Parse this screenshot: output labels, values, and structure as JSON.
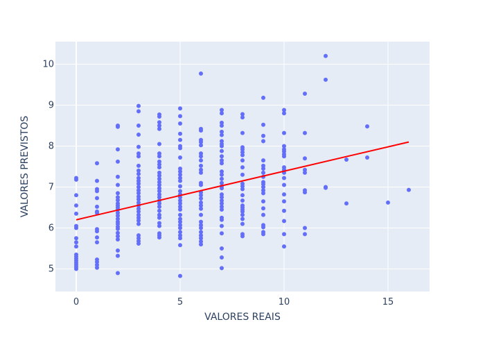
{
  "chart_data": {
    "type": "scatter",
    "xlabel": "VALORES REAIS",
    "ylabel": "VALORES PREVISTOS",
    "xlim": [
      -1,
      17
    ],
    "ylim": [
      4.45,
      10.55
    ],
    "x_ticks": [
      0,
      5,
      10,
      15
    ],
    "y_ticks": [
      5,
      6,
      7,
      8,
      9,
      10
    ],
    "grid": true,
    "colors": {
      "background": "#e5ecf6",
      "grid": "#ffffff",
      "points": "#636efa",
      "trend": "#ff0000",
      "text": "#2a3f5f"
    },
    "series": [
      {
        "points": [
          [
            0,
            5.0
          ],
          [
            0,
            5.05
          ],
          [
            0,
            5.1
          ],
          [
            0,
            5.15
          ],
          [
            0,
            5.2
          ],
          [
            0,
            5.25
          ],
          [
            0,
            5.3
          ],
          [
            0,
            5.35
          ],
          [
            0,
            5.55
          ],
          [
            0,
            5.65
          ],
          [
            0,
            5.75
          ],
          [
            0,
            6.0
          ],
          [
            0,
            6.05
          ],
          [
            0,
            6.35
          ],
          [
            0,
            6.55
          ],
          [
            0,
            6.8
          ],
          [
            0,
            7.18
          ],
          [
            0,
            7.22
          ],
          [
            1,
            5.03
          ],
          [
            1,
            5.1
          ],
          [
            1,
            5.17
          ],
          [
            1,
            5.23
          ],
          [
            1,
            5.65
          ],
          [
            1,
            5.77
          ],
          [
            1,
            5.92
          ],
          [
            1,
            5.97
          ],
          [
            1,
            6.37
          ],
          [
            1,
            6.4
          ],
          [
            1,
            6.52
          ],
          [
            1,
            6.73
          ],
          [
            1,
            6.9
          ],
          [
            1,
            6.95
          ],
          [
            1,
            7.15
          ],
          [
            1,
            7.58
          ],
          [
            2,
            4.9
          ],
          [
            2,
            5.32
          ],
          [
            2,
            5.45
          ],
          [
            2,
            5.72
          ],
          [
            2,
            5.8
          ],
          [
            2,
            5.88
          ],
          [
            2,
            5.98
          ],
          [
            2,
            6.03
          ],
          [
            2,
            6.1
          ],
          [
            2,
            6.15
          ],
          [
            2,
            6.22
          ],
          [
            2,
            6.3
          ],
          [
            2,
            6.37
          ],
          [
            2,
            6.45
          ],
          [
            2,
            6.5
          ],
          [
            2,
            6.55
          ],
          [
            2,
            6.6
          ],
          [
            2,
            6.68
          ],
          [
            2,
            6.75
          ],
          [
            2,
            6.85
          ],
          [
            2,
            7.05
          ],
          [
            2,
            7.25
          ],
          [
            2,
            7.62
          ],
          [
            2,
            7.92
          ],
          [
            2,
            8.47
          ],
          [
            2,
            8.5
          ],
          [
            3,
            5.62
          ],
          [
            3,
            5.68
          ],
          [
            3,
            5.75
          ],
          [
            3,
            5.82
          ],
          [
            3,
            6.1
          ],
          [
            3,
            6.18
          ],
          [
            3,
            6.25
          ],
          [
            3,
            6.32
          ],
          [
            3,
            6.4
          ],
          [
            3,
            6.47
          ],
          [
            3,
            6.55
          ],
          [
            3,
            6.62
          ],
          [
            3,
            6.7
          ],
          [
            3,
            6.77
          ],
          [
            3,
            6.85
          ],
          [
            3,
            6.92
          ],
          [
            3,
            7.0
          ],
          [
            3,
            7.08
          ],
          [
            3,
            7.15
          ],
          [
            3,
            7.22
          ],
          [
            3,
            7.32
          ],
          [
            3,
            7.4
          ],
          [
            3,
            7.52
          ],
          [
            3,
            7.75
          ],
          [
            3,
            7.82
          ],
          [
            3,
            7.98
          ],
          [
            3,
            8.28
          ],
          [
            3,
            8.5
          ],
          [
            3,
            8.85
          ],
          [
            3,
            8.98
          ],
          [
            4,
            5.77
          ],
          [
            4,
            5.82
          ],
          [
            4,
            5.87
          ],
          [
            4,
            6.05
          ],
          [
            4,
            6.12
          ],
          [
            4,
            6.25
          ],
          [
            4,
            6.32
          ],
          [
            4,
            6.42
          ],
          [
            4,
            6.52
          ],
          [
            4,
            6.6
          ],
          [
            4,
            6.67
          ],
          [
            4,
            6.75
          ],
          [
            4,
            6.82
          ],
          [
            4,
            6.9
          ],
          [
            4,
            6.97
          ],
          [
            4,
            7.05
          ],
          [
            4,
            7.12
          ],
          [
            4,
            7.2
          ],
          [
            4,
            7.28
          ],
          [
            4,
            7.35
          ],
          [
            4,
            7.48
          ],
          [
            4,
            7.55
          ],
          [
            4,
            7.62
          ],
          [
            4,
            7.75
          ],
          [
            4,
            7.82
          ],
          [
            4,
            8.05
          ],
          [
            4,
            8.42
          ],
          [
            4,
            8.5
          ],
          [
            4,
            8.58
          ],
          [
            4,
            8.72
          ],
          [
            4,
            8.77
          ],
          [
            5,
            4.83
          ],
          [
            5,
            5.58
          ],
          [
            5,
            5.75
          ],
          [
            5,
            5.82
          ],
          [
            5,
            5.9
          ],
          [
            5,
            6.0
          ],
          [
            5,
            6.07
          ],
          [
            5,
            6.15
          ],
          [
            5,
            6.22
          ],
          [
            5,
            6.32
          ],
          [
            5,
            6.45
          ],
          [
            5,
            6.52
          ],
          [
            5,
            6.6
          ],
          [
            5,
            6.67
          ],
          [
            5,
            6.75
          ],
          [
            5,
            6.82
          ],
          [
            5,
            6.9
          ],
          [
            5,
            7.02
          ],
          [
            5,
            7.15
          ],
          [
            5,
            7.22
          ],
          [
            5,
            7.3
          ],
          [
            5,
            7.38
          ],
          [
            5,
            7.45
          ],
          [
            5,
            7.72
          ],
          [
            5,
            7.95
          ],
          [
            5,
            8.0
          ],
          [
            5,
            8.15
          ],
          [
            5,
            8.3
          ],
          [
            5,
            8.55
          ],
          [
            5,
            8.73
          ],
          [
            5,
            8.92
          ],
          [
            6,
            5.6
          ],
          [
            6,
            5.67
          ],
          [
            6,
            5.75
          ],
          [
            6,
            5.82
          ],
          [
            6,
            5.9
          ],
          [
            6,
            6.0
          ],
          [
            6,
            6.07
          ],
          [
            6,
            6.15
          ],
          [
            6,
            6.32
          ],
          [
            6,
            6.47
          ],
          [
            6,
            6.55
          ],
          [
            6,
            6.62
          ],
          [
            6,
            6.72
          ],
          [
            6,
            6.8
          ],
          [
            6,
            6.87
          ],
          [
            6,
            7.05
          ],
          [
            6,
            7.1
          ],
          [
            6,
            7.35
          ],
          [
            6,
            7.42
          ],
          [
            6,
            7.52
          ],
          [
            6,
            7.65
          ],
          [
            6,
            7.75
          ],
          [
            6,
            7.82
          ],
          [
            6,
            8.02
          ],
          [
            6,
            8.1
          ],
          [
            6,
            8.15
          ],
          [
            6,
            8.38
          ],
          [
            6,
            8.42
          ],
          [
            6,
            9.77
          ],
          [
            7,
            5.02
          ],
          [
            7,
            5.28
          ],
          [
            7,
            5.5
          ],
          [
            7,
            5.87
          ],
          [
            7,
            6.05
          ],
          [
            7,
            6.2
          ],
          [
            7,
            6.25
          ],
          [
            7,
            6.45
          ],
          [
            7,
            6.52
          ],
          [
            7,
            6.6
          ],
          [
            7,
            6.67
          ],
          [
            7,
            6.75
          ],
          [
            7,
            6.82
          ],
          [
            7,
            6.97
          ],
          [
            7,
            7.02
          ],
          [
            7,
            7.1
          ],
          [
            7,
            7.2
          ],
          [
            7,
            7.3
          ],
          [
            7,
            7.38
          ],
          [
            7,
            7.58
          ],
          [
            7,
            7.65
          ],
          [
            7,
            7.75
          ],
          [
            7,
            7.88
          ],
          [
            7,
            8.0
          ],
          [
            7,
            8.05
          ],
          [
            7,
            8.12
          ],
          [
            7,
            8.27
          ],
          [
            7,
            8.35
          ],
          [
            7,
            8.5
          ],
          [
            7,
            8.57
          ],
          [
            7,
            8.8
          ],
          [
            7,
            8.88
          ],
          [
            8,
            5.8
          ],
          [
            8,
            5.85
          ],
          [
            8,
            6.1
          ],
          [
            8,
            6.22
          ],
          [
            8,
            6.32
          ],
          [
            8,
            6.4
          ],
          [
            8,
            6.45
          ],
          [
            8,
            6.5
          ],
          [
            8,
            6.55
          ],
          [
            8,
            6.67
          ],
          [
            8,
            6.8
          ],
          [
            8,
            6.95
          ],
          [
            8,
            7.02
          ],
          [
            8,
            7.08
          ],
          [
            8,
            7.3
          ],
          [
            8,
            7.48
          ],
          [
            8,
            7.65
          ],
          [
            8,
            7.78
          ],
          [
            8,
            7.85
          ],
          [
            8,
            7.92
          ],
          [
            8,
            7.97
          ],
          [
            8,
            8.32
          ],
          [
            8,
            8.7
          ],
          [
            8,
            8.78
          ],
          [
            9,
            5.85
          ],
          [
            9,
            5.9
          ],
          [
            9,
            6.02
          ],
          [
            9,
            6.07
          ],
          [
            9,
            6.32
          ],
          [
            9,
            6.48
          ],
          [
            9,
            6.65
          ],
          [
            9,
            6.85
          ],
          [
            9,
            6.92
          ],
          [
            9,
            7.0
          ],
          [
            9,
            7.07
          ],
          [
            9,
            7.12
          ],
          [
            9,
            7.25
          ],
          [
            9,
            7.35
          ],
          [
            9,
            7.45
          ],
          [
            9,
            7.52
          ],
          [
            9,
            7.65
          ],
          [
            9,
            8.12
          ],
          [
            9,
            8.25
          ],
          [
            9,
            8.52
          ],
          [
            9,
            9.18
          ],
          [
            10,
            5.55
          ],
          [
            10,
            5.85
          ],
          [
            10,
            6.17
          ],
          [
            10,
            6.42
          ],
          [
            10,
            6.65
          ],
          [
            10,
            6.82
          ],
          [
            10,
            7.05
          ],
          [
            10,
            7.22
          ],
          [
            10,
            7.35
          ],
          [
            10,
            7.42
          ],
          [
            10,
            7.48
          ],
          [
            10,
            7.75
          ],
          [
            10,
            7.8
          ],
          [
            10,
            7.87
          ],
          [
            10,
            7.92
          ],
          [
            10,
            8.0
          ],
          [
            10,
            8.32
          ],
          [
            10,
            8.8
          ],
          [
            10,
            8.88
          ],
          [
            11,
            5.85
          ],
          [
            11,
            6.0
          ],
          [
            11,
            6.87
          ],
          [
            11,
            6.92
          ],
          [
            11,
            7.35
          ],
          [
            11,
            7.42
          ],
          [
            11,
            7.7
          ],
          [
            11,
            8.32
          ],
          [
            11,
            9.28
          ],
          [
            12,
            6.98
          ],
          [
            12,
            7.0
          ],
          [
            12,
            9.62
          ],
          [
            12,
            10.2
          ],
          [
            13,
            6.6
          ],
          [
            13,
            7.67
          ],
          [
            14,
            7.72
          ],
          [
            14,
            8.48
          ],
          [
            15,
            6.62
          ],
          [
            16,
            6.93
          ]
        ]
      }
    ],
    "trendline": {
      "x": [
        0,
        16
      ],
      "y": [
        6.2,
        8.1
      ]
    }
  }
}
